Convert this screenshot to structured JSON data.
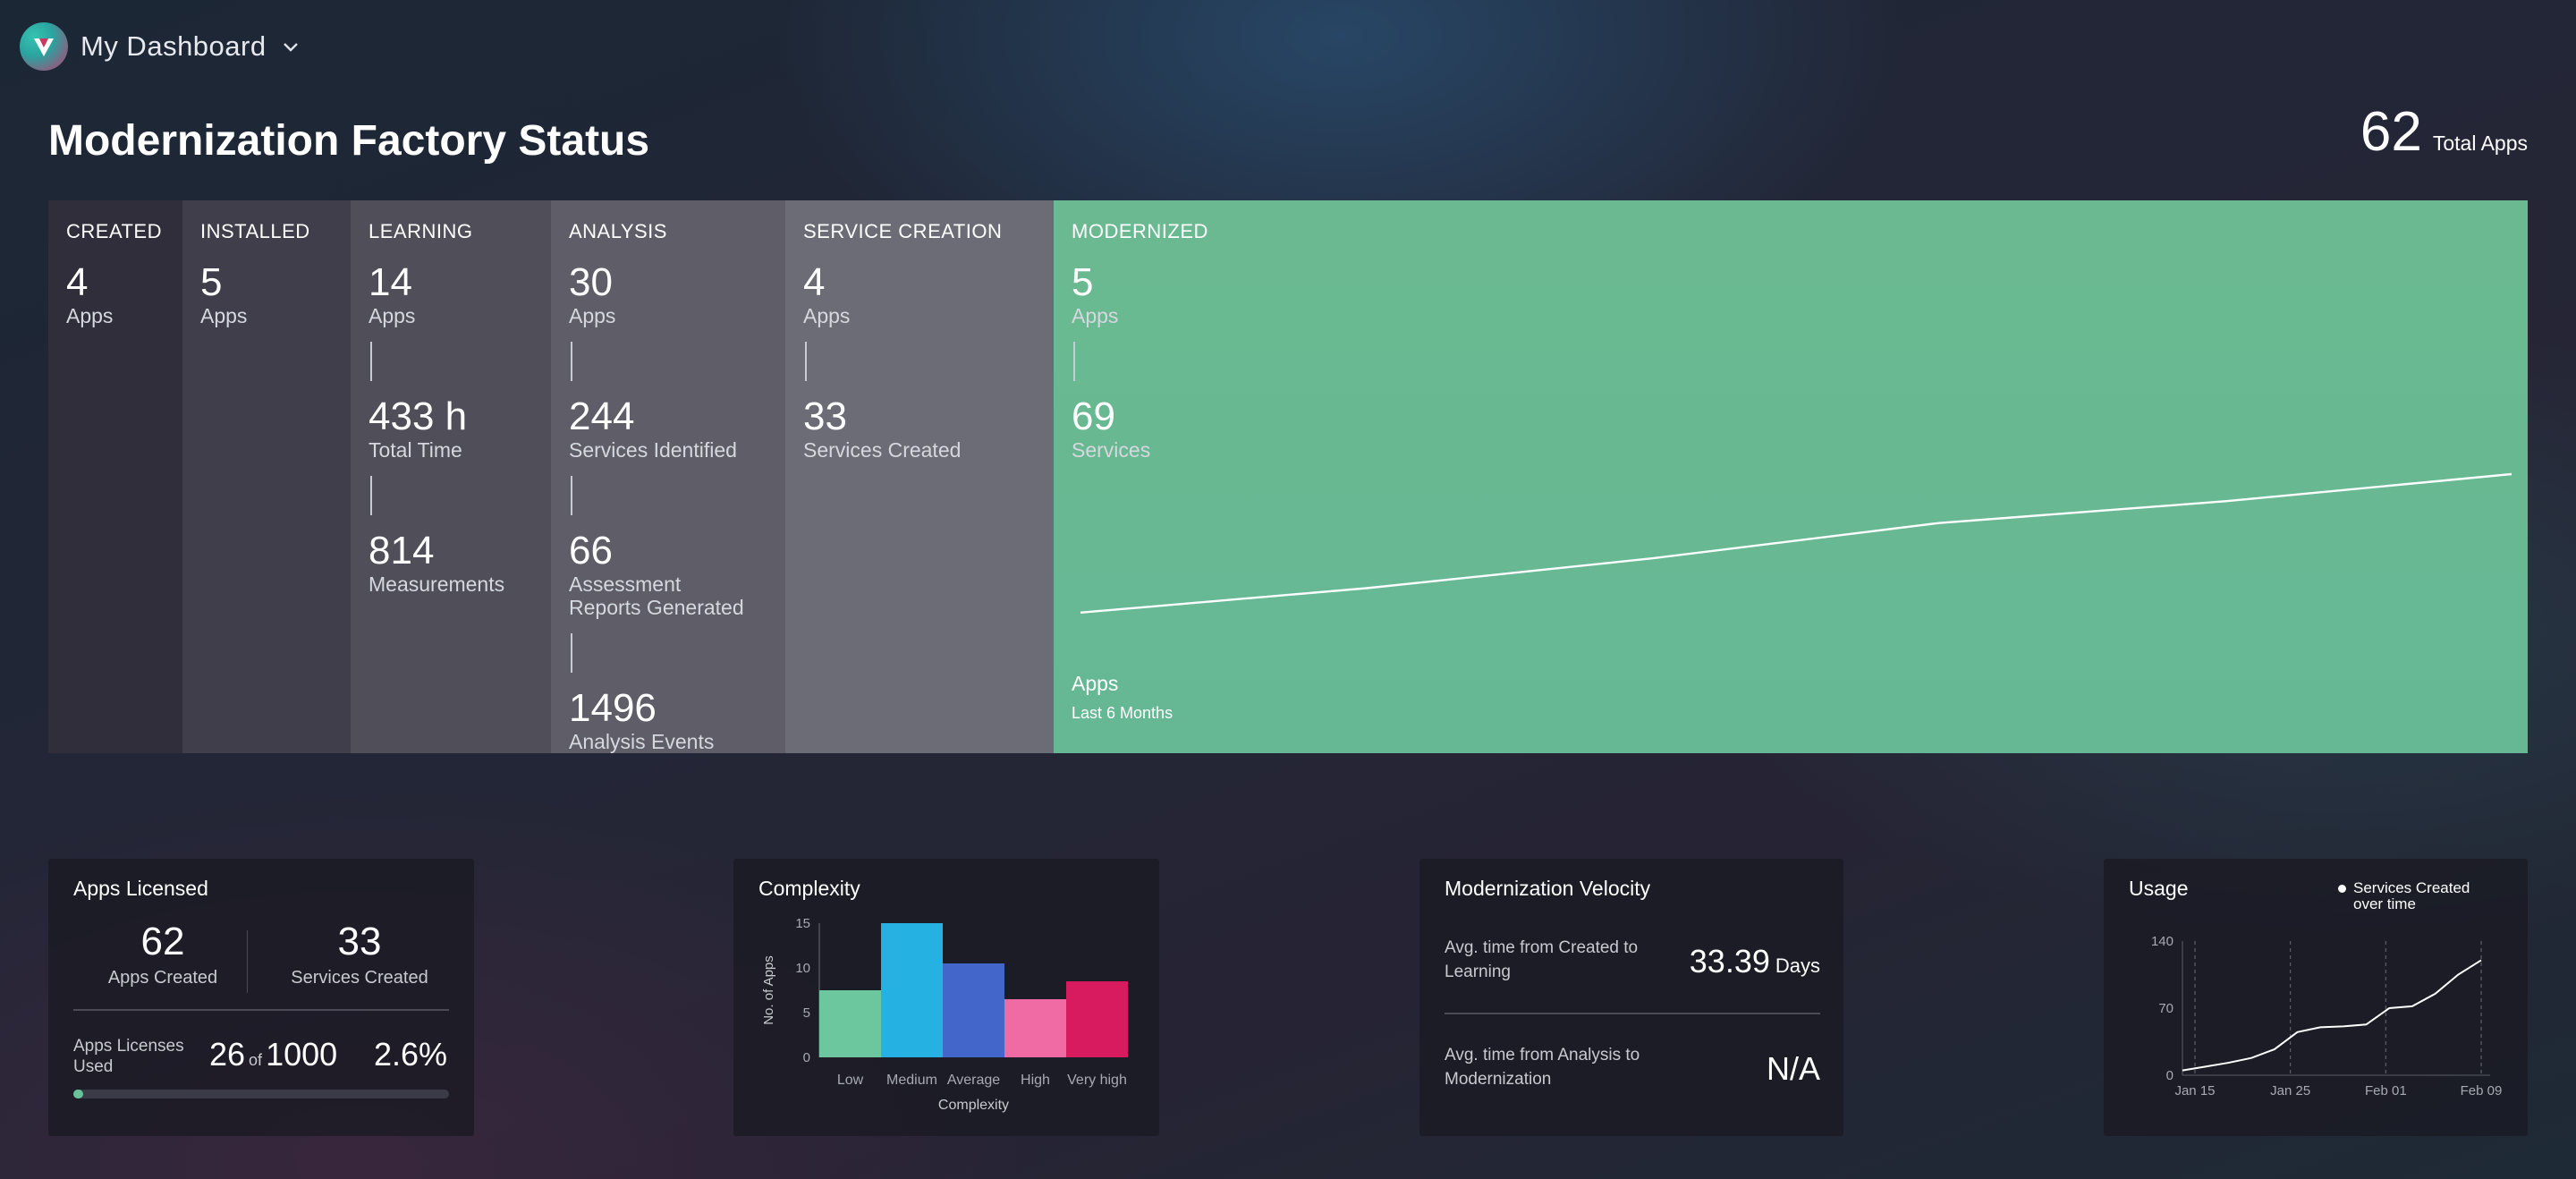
{
  "header": {
    "dashboard_name": "My Dashboard",
    "page_title": "Modernization Factory Status",
    "total_apps": "62",
    "total_apps_label": "Total Apps"
  },
  "stages": {
    "created": {
      "label": "CREATED",
      "apps": "4",
      "apps_unit": "Apps"
    },
    "installed": {
      "label": "INSTALLED",
      "apps": "5",
      "apps_unit": "Apps"
    },
    "learning": {
      "label": "LEARNING",
      "apps": "14",
      "apps_unit": "Apps",
      "time": "433 h",
      "time_label": "Total Time",
      "measurements": "814",
      "measurements_label": "Measurements"
    },
    "analysis": {
      "label": "ANALYSIS",
      "apps": "30",
      "apps_unit": "Apps",
      "services": "244",
      "services_label": "Services Identified",
      "reports": "66",
      "reports_label": "Assessment Reports Generated",
      "events": "1496",
      "events_label": "Analysis Events"
    },
    "service_creation": {
      "label": "SERVICE CREATION",
      "apps": "4",
      "apps_unit": "Apps",
      "services": "33",
      "services_label": "Services Created"
    },
    "modernized": {
      "label": "MODERNIZED",
      "apps": "5",
      "apps_unit": "Apps",
      "services": "69",
      "services_label": "Services",
      "chart_label": "Apps",
      "chart_sub": "Last 6 Months"
    }
  },
  "apps_licensed": {
    "title": "Apps Licensed",
    "apps_created": "62",
    "apps_created_label": "Apps Created",
    "services_created": "33",
    "services_created_label": "Services Created",
    "licenses_label": "Apps Licenses Used",
    "used": "26",
    "of": "of",
    "total": "1000",
    "pct": "2.6%",
    "pct_value": 0.026
  },
  "complexity": {
    "title": "Complexity"
  },
  "velocity": {
    "title": "Modernization Velocity",
    "row1_label": "Avg. time from Created to Learning",
    "row1_value": "33.39",
    "row1_unit": "Days",
    "row2_label": "Avg. time from Analysis to Modernization",
    "row2_value": "N/A"
  },
  "usage": {
    "title": "Usage",
    "legend": "Services Created over time"
  },
  "chart_data": [
    {
      "type": "line",
      "title": "",
      "series": [
        {
          "values": [
            0.5,
            1.4,
            2.5,
            3.8,
            4.6,
            5.6
          ]
        }
      ]
    },
    {
      "type": "bar",
      "categories": [
        "Low",
        "Medium",
        "Average",
        "High",
        "Very high"
      ],
      "values": [
        7.5,
        15,
        10.5,
        6.5,
        8.5
      ],
      "xlabel": "Complexity",
      "ylabel": "No. of Apps",
      "ylim": [
        0,
        15
      ],
      "yticks": [
        "0",
        "5",
        "10",
        "15"
      ],
      "colors": [
        "#6cc79e",
        "#25b2e3",
        "#4266c9",
        "#f06aa4",
        "#d81a5f"
      ]
    },
    {
      "type": "line",
      "x_labels": [
        "Jan 15",
        "Jan 25",
        "Feb 01",
        "Feb 09"
      ],
      "yticks": [
        "0",
        "70",
        "140"
      ],
      "ylim": [
        0,
        140
      ],
      "series": [
        {
          "name": "Services Created over time",
          "values": [
            5,
            9,
            13,
            18,
            27,
            45,
            50,
            51,
            53,
            70,
            72,
            85,
            105,
            120
          ]
        }
      ]
    }
  ]
}
